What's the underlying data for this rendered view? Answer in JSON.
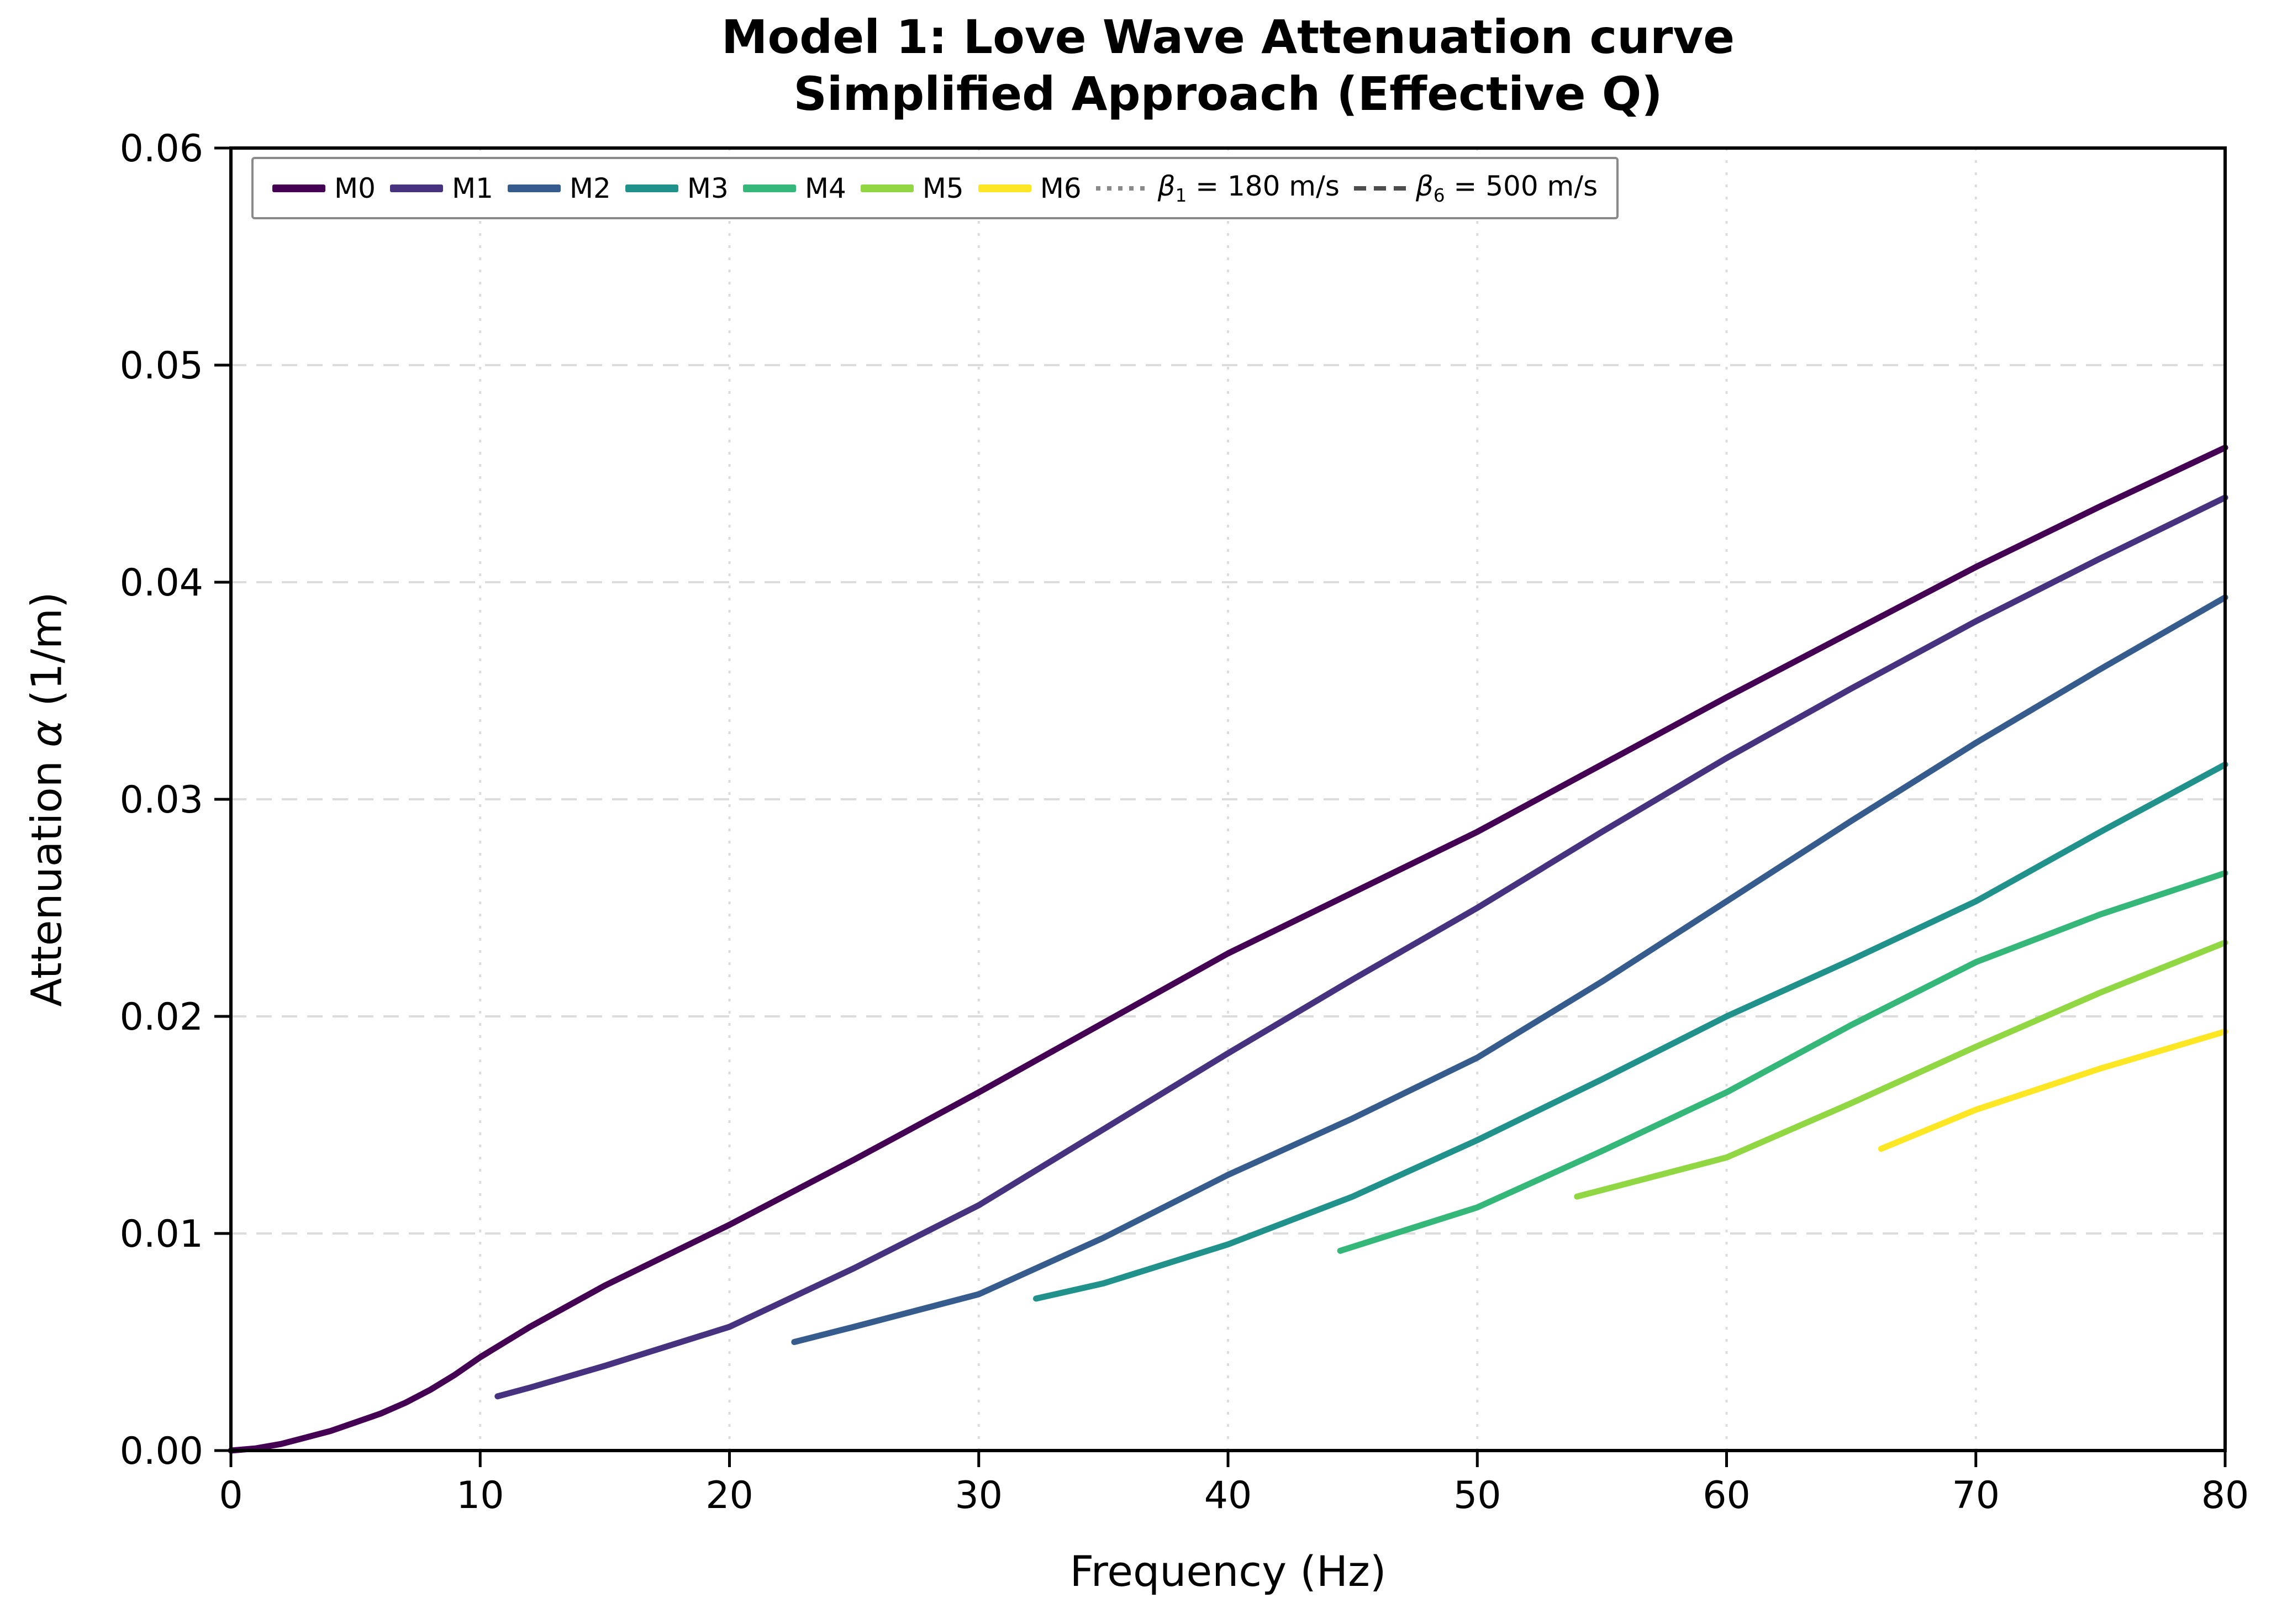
{
  "title": {
    "line1": "Model 1: Love Wave Attenuation curve",
    "line2": "Simplified Approach (Effective Q)"
  },
  "axes": {
    "xlabel": "Frequency (Hz)",
    "ylabel_prefix": "Attenuation ",
    "ylabel_alpha": "α",
    "ylabel_suffix": " (1/m)"
  },
  "legend": {
    "modes": [
      {
        "label": "M0",
        "color": "#440154"
      },
      {
        "label": "M1",
        "color": "#46327e"
      },
      {
        "label": "M2",
        "color": "#365c8d"
      },
      {
        "label": "M3",
        "color": "#21918c"
      },
      {
        "label": "M4",
        "color": "#35b779"
      },
      {
        "label": "M5",
        "color": "#90d743"
      },
      {
        "label": "M6",
        "color": "#fde725"
      }
    ],
    "refs": [
      {
        "style": "dotted",
        "color": "#8a8a8a",
        "beta": "β",
        "sub": "1",
        "text": " = 180 m/s"
      },
      {
        "style": "dashed",
        "color": "#4d4d4d",
        "beta": "β",
        "sub": "6",
        "text": " = 500 m/s"
      }
    ]
  },
  "chart_data": {
    "type": "line",
    "title": "Model 1: Love Wave Attenuation curve",
    "subtitle": "Simplified Approach (Effective Q)",
    "xlabel": "Frequency (Hz)",
    "ylabel": "Attenuation α (1/m)",
    "xlim": [
      0,
      80
    ],
    "ylim": [
      0,
      0.06
    ],
    "xticks": [
      0,
      10,
      20,
      30,
      40,
      50,
      60,
      70,
      80
    ],
    "xtick_labels": [
      "0",
      "10",
      "20",
      "30",
      "40",
      "50",
      "60",
      "70",
      "80"
    ],
    "yticks": [
      0,
      0.01,
      0.02,
      0.03,
      0.04,
      0.05,
      0.06
    ],
    "ytick_labels": [
      "0.00",
      "0.01",
      "0.02",
      "0.03",
      "0.04",
      "0.05",
      "0.06"
    ],
    "grid": true,
    "grid_color": "#dcdcdc",
    "legend_position": "upper center, inside axes, horizontal",
    "series": [
      {
        "name": "M0",
        "color": "#440154",
        "points": [
          [
            0,
            0
          ],
          [
            1,
            0.0001
          ],
          [
            2,
            0.0003
          ],
          [
            3,
            0.0006
          ],
          [
            4,
            0.0009
          ],
          [
            5,
            0.0013
          ],
          [
            6,
            0.0017
          ],
          [
            7,
            0.0022
          ],
          [
            8,
            0.0028
          ],
          [
            9,
            0.0035
          ],
          [
            10,
            0.0043
          ],
          [
            12,
            0.0057
          ],
          [
            15,
            0.0076
          ],
          [
            20,
            0.0104
          ],
          [
            25,
            0.0134
          ],
          [
            30,
            0.0165
          ],
          [
            35,
            0.0197
          ],
          [
            40,
            0.0229
          ],
          [
            45,
            0.0257
          ],
          [
            50,
            0.0285
          ],
          [
            55,
            0.0316
          ],
          [
            60,
            0.0347
          ],
          [
            65,
            0.0377
          ],
          [
            70,
            0.0407
          ],
          [
            75,
            0.0435
          ],
          [
            80,
            0.0462
          ]
        ]
      },
      {
        "name": "M1",
        "color": "#46327e",
        "points": [
          [
            10.7,
            0.0025
          ],
          [
            12,
            0.0029
          ],
          [
            15,
            0.0039
          ],
          [
            20,
            0.0057
          ],
          [
            25,
            0.0084
          ],
          [
            30,
            0.0113
          ],
          [
            35,
            0.0148
          ],
          [
            40,
            0.0183
          ],
          [
            45,
            0.0217
          ],
          [
            50,
            0.025
          ],
          [
            55,
            0.0285
          ],
          [
            60,
            0.0319
          ],
          [
            65,
            0.0351
          ],
          [
            70,
            0.0382
          ],
          [
            75,
            0.0411
          ],
          [
            80,
            0.0439
          ]
        ]
      },
      {
        "name": "M2",
        "color": "#365c8d",
        "points": [
          [
            22.6,
            0.005
          ],
          [
            25,
            0.0057
          ],
          [
            30,
            0.0072
          ],
          [
            35,
            0.0098
          ],
          [
            40,
            0.0127
          ],
          [
            45,
            0.0153
          ],
          [
            50,
            0.0181
          ],
          [
            55,
            0.0216
          ],
          [
            60,
            0.0253
          ],
          [
            65,
            0.029
          ],
          [
            70,
            0.0326
          ],
          [
            75,
            0.036
          ],
          [
            80,
            0.0393
          ]
        ]
      },
      {
        "name": "M3",
        "color": "#21918c",
        "points": [
          [
            32.3,
            0.007
          ],
          [
            35,
            0.0077
          ],
          [
            40,
            0.0095
          ],
          [
            45,
            0.0117
          ],
          [
            50,
            0.0143
          ],
          [
            55,
            0.0171
          ],
          [
            60,
            0.02
          ],
          [
            65,
            0.0226
          ],
          [
            70,
            0.0253
          ],
          [
            75,
            0.0285
          ],
          [
            80,
            0.0316
          ]
        ]
      },
      {
        "name": "M4",
        "color": "#35b779",
        "points": [
          [
            44.5,
            0.0092
          ],
          [
            50,
            0.0112
          ],
          [
            55,
            0.0138
          ],
          [
            60,
            0.0165
          ],
          [
            65,
            0.0196
          ],
          [
            70,
            0.0225
          ],
          [
            75,
            0.0247
          ],
          [
            80,
            0.0266
          ]
        ]
      },
      {
        "name": "M5",
        "color": "#90d743",
        "points": [
          [
            54,
            0.0117
          ],
          [
            60,
            0.0135
          ],
          [
            65,
            0.016
          ],
          [
            70,
            0.0186
          ],
          [
            75,
            0.0211
          ],
          [
            80,
            0.0234
          ]
        ]
      },
      {
        "name": "M6",
        "color": "#fde725",
        "points": [
          [
            66.2,
            0.0139
          ],
          [
            70,
            0.0157
          ],
          [
            75,
            0.0176
          ],
          [
            80,
            0.0193
          ]
        ]
      }
    ]
  }
}
